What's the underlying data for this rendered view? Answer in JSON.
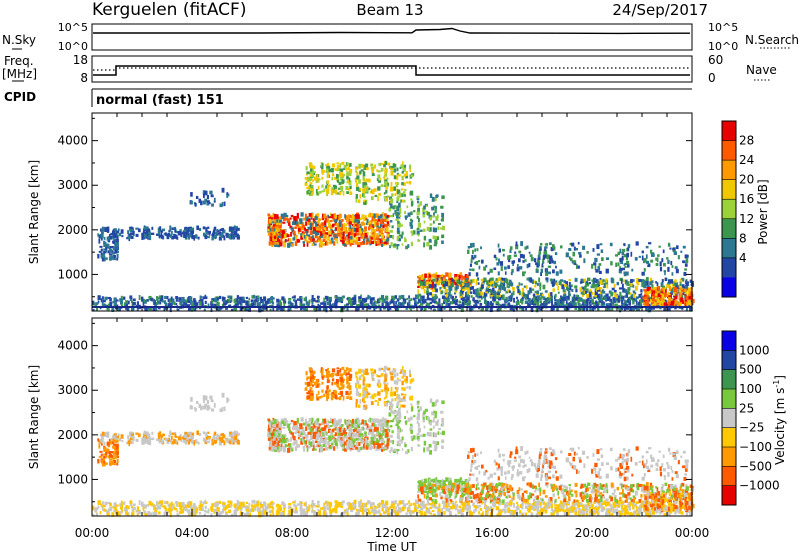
{
  "header": {
    "station": "Kerguelen (fitACF)",
    "beam": "Beam 13",
    "date": "24/Sep/2017"
  },
  "panel_nsky": {
    "left_label": "N.Sky",
    "left_ticks": [
      "10^5",
      "10^0"
    ],
    "right_ticks": [
      "10^5",
      "10^0"
    ],
    "right_label": "N.Search"
  },
  "panel_freq": {
    "left_label_1": "Freq.",
    "left_label_2": "[MHz]",
    "left_ticks": [
      "18",
      "8"
    ],
    "right_ticks": [
      "60",
      "0"
    ],
    "right_label": "Nave",
    "cpid_label": "CPID",
    "mode_text": "normal (fast) 151"
  },
  "chart_data": [
    {
      "type": "heatmap",
      "name": "power",
      "ylabel": "Slant Range [km]",
      "yticks": [
        1000,
        2000,
        3000,
        4000
      ],
      "ylim": [
        180,
        4620
      ],
      "xlim_hours": [
        0,
        24
      ],
      "colorbar": {
        "label": "Power [dB]",
        "ticks": [
          "28",
          "24",
          "20",
          "16",
          "12",
          "8",
          "4"
        ],
        "colors": [
          "#e60000",
          "#ff5a00",
          "#ff9900",
          "#f0c800",
          "#9bd23c",
          "#3c9650",
          "#2d7891",
          "#2346a5",
          "#0a00e6"
        ]
      }
    },
    {
      "type": "heatmap",
      "name": "velocity",
      "ylabel": "Slant Range [km]",
      "yticks": [
        1000,
        2000,
        3000,
        4000
      ],
      "ylim": [
        180,
        4620
      ],
      "xlim_hours": [
        0,
        24
      ],
      "xlabel": "Time UT",
      "xticks": [
        "00:00",
        "04:00",
        "08:00",
        "12:00",
        "16:00",
        "20:00",
        "00:00"
      ],
      "colorbar": {
        "label_main": "Velocity [m s",
        "label_sup": "-1",
        "label_end": "]",
        "ticks": [
          "1000",
          "500",
          "100",
          "25",
          "−25",
          "−100",
          "−500",
          "−1000"
        ],
        "colors": [
          "#0a00e6",
          "#2346a5",
          "#3c9650",
          "#78c83c",
          "#c8c8c8",
          "#ffc800",
          "#ff9900",
          "#ff5a00",
          "#e60000"
        ]
      }
    }
  ]
}
